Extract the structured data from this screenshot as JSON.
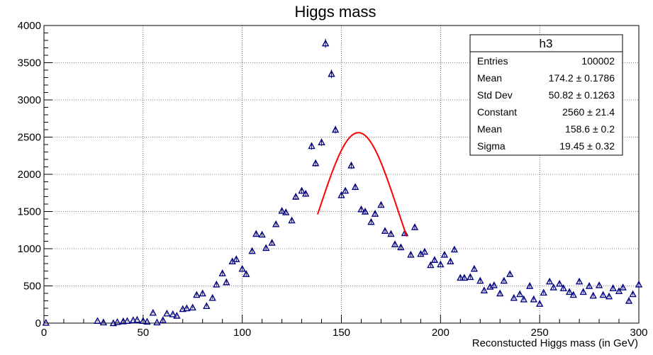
{
  "chart_data": {
    "type": "scatter",
    "title": "Higgs mass",
    "xlabel": "Reconstucted Higgs mass (in GeV)",
    "ylabel": "",
    "xlim": [
      0,
      300
    ],
    "ylim": [
      0,
      4000
    ],
    "xticks": [
      "0",
      "50",
      "100",
      "150",
      "200",
      "250",
      "300"
    ],
    "yticks": [
      "0",
      "500",
      "1000",
      "1500",
      "2000",
      "2500",
      "3000",
      "3500",
      "4000"
    ],
    "grid": true,
    "marker_color": "#000080",
    "fit_color": "#ff0000",
    "series": [
      {
        "name": "h3",
        "x": [
          1,
          27,
          30,
          35,
          37,
          40,
          42,
          45,
          47,
          50,
          52,
          55,
          57,
          60,
          62,
          65,
          67,
          70,
          72,
          75,
          77,
          80,
          82,
          85,
          87,
          90,
          92,
          95,
          97,
          100,
          102,
          105,
          107,
          110,
          112,
          115,
          117,
          120,
          122,
          125,
          127,
          130,
          132,
          135,
          137,
          140,
          142,
          145,
          147,
          150,
          152,
          155,
          157,
          160,
          162,
          165,
          167,
          170,
          172,
          175,
          177,
          180,
          182,
          185,
          187,
          190,
          192,
          195,
          197,
          200,
          202,
          205,
          207,
          210,
          212,
          215,
          217,
          220,
          222,
          225,
          227,
          230,
          232,
          235,
          237,
          240,
          242,
          245,
          247,
          250,
          252,
          255,
          257,
          260,
          262,
          265,
          267,
          270,
          272,
          275,
          277,
          280,
          282,
          285,
          287,
          290,
          292,
          295,
          297,
          300
        ],
        "y": [
          5,
          30,
          10,
          0,
          15,
          25,
          30,
          40,
          45,
          30,
          20,
          140,
          10,
          40,
          130,
          120,
          100,
          190,
          200,
          210,
          380,
          400,
          230,
          340,
          520,
          670,
          550,
          830,
          860,
          730,
          660,
          970,
          1200,
          1190,
          1010,
          1080,
          1330,
          1510,
          1490,
          1380,
          1700,
          1780,
          1740,
          2380,
          2150,
          2430,
          3760,
          3350,
          2600,
          1720,
          1780,
          2120,
          1830,
          1530,
          1500,
          1360,
          1470,
          1590,
          1240,
          1200,
          1060,
          1020,
          1210,
          920,
          1290,
          930,
          960,
          780,
          850,
          790,
          920,
          830,
          990,
          610,
          610,
          620,
          730,
          570,
          440,
          490,
          510,
          400,
          570,
          660,
          340,
          390,
          320,
          500,
          320,
          260,
          410,
          560,
          480,
          530,
          470,
          420,
          380,
          560,
          420,
          500,
          370,
          510,
          380,
          360,
          470,
          430,
          480,
          300,
          390,
          520
        ]
      }
    ],
    "fit": {
      "type": "gaussian",
      "constant": 2560,
      "mean": 158.6,
      "sigma": 19.45,
      "xrange": [
        138,
        183
      ]
    }
  },
  "stats_box": {
    "title": "h3",
    "rows": [
      {
        "label": "Entries",
        "value": "100002"
      },
      {
        "label": "Mean",
        "value": "174.2 ± 0.1786"
      },
      {
        "label": "Std Dev",
        "value": "50.82 ± 0.1263"
      },
      {
        "label": "Constant",
        "value": "2560 ± 21.4"
      },
      {
        "label": "Mean",
        "value": "158.6 ± 0.2"
      },
      {
        "label": "Sigma",
        "value": "19.45 ± 0.32"
      }
    ]
  }
}
